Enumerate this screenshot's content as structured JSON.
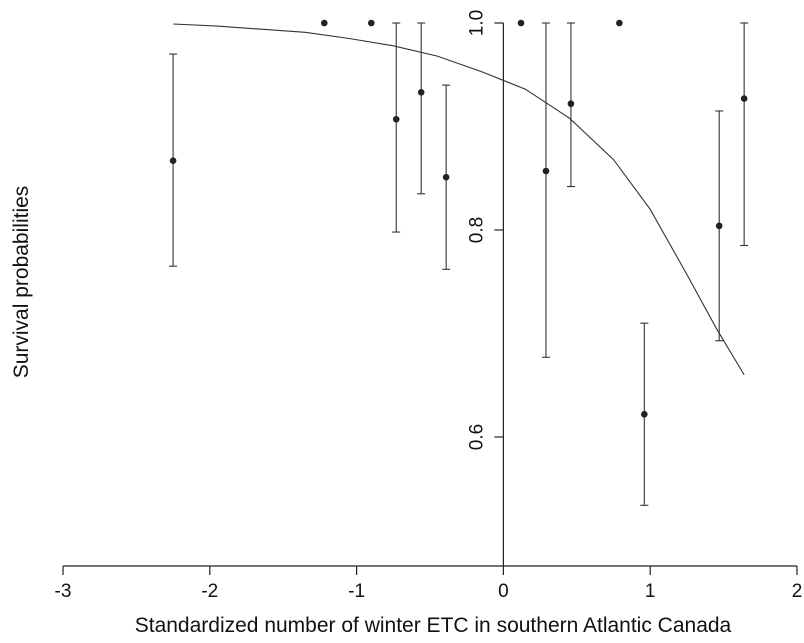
{
  "chart_data": {
    "type": "scatter",
    "xlabel": "Standardized number of winter ETC in southern Atlantic Canada",
    "ylabel": "Survival probabilities",
    "xlim": [
      -3,
      2
    ],
    "ylim": [
      0.52,
      1.0
    ],
    "x_ticks": [
      "-3",
      "-2",
      "-1",
      "0",
      "1",
      "2"
    ],
    "y_ticks": [
      "0.6",
      "0.8",
      "1.0"
    ],
    "grid": false,
    "colors": {
      "points": "#222222",
      "lines": "#333333"
    },
    "points": [
      {
        "x": -2.25,
        "y": 0.867,
        "lower": 0.765,
        "upper": 0.97
      },
      {
        "x": -1.22,
        "y": 1.0
      },
      {
        "x": -0.9,
        "y": 1.0
      },
      {
        "x": -0.73,
        "y": 0.907,
        "lower": 0.798,
        "upper": 1.0
      },
      {
        "x": -0.56,
        "y": 0.933,
        "lower": 0.835,
        "upper": 1.0
      },
      {
        "x": -0.39,
        "y": 0.851,
        "lower": 0.762,
        "upper": 0.94
      },
      {
        "x": 0.12,
        "y": 1.0
      },
      {
        "x": 0.29,
        "y": 0.857,
        "lower": 0.677,
        "upper": 1.0
      },
      {
        "x": 0.46,
        "y": 0.922,
        "lower": 0.842,
        "upper": 1.0
      },
      {
        "x": 0.79,
        "y": 1.0
      },
      {
        "x": 0.96,
        "y": 0.622,
        "lower": 0.534,
        "upper": 0.71
      },
      {
        "x": 1.47,
        "y": 0.804,
        "lower": 0.693,
        "upper": 0.915
      },
      {
        "x": 1.64,
        "y": 0.927,
        "lower": 0.785,
        "upper": 1.0
      }
    ],
    "fitted_curve": {
      "x": [
        -2.25,
        -1.95,
        -1.65,
        -1.35,
        -1.05,
        -0.75,
        -0.45,
        -0.15,
        0.15,
        0.45,
        0.75,
        1.0,
        1.25,
        1.45,
        1.64
      ],
      "y": [
        0.999,
        0.997,
        0.994,
        0.991,
        0.985,
        0.978,
        0.968,
        0.953,
        0.936,
        0.908,
        0.868,
        0.82,
        0.757,
        0.705,
        0.66
      ]
    }
  }
}
